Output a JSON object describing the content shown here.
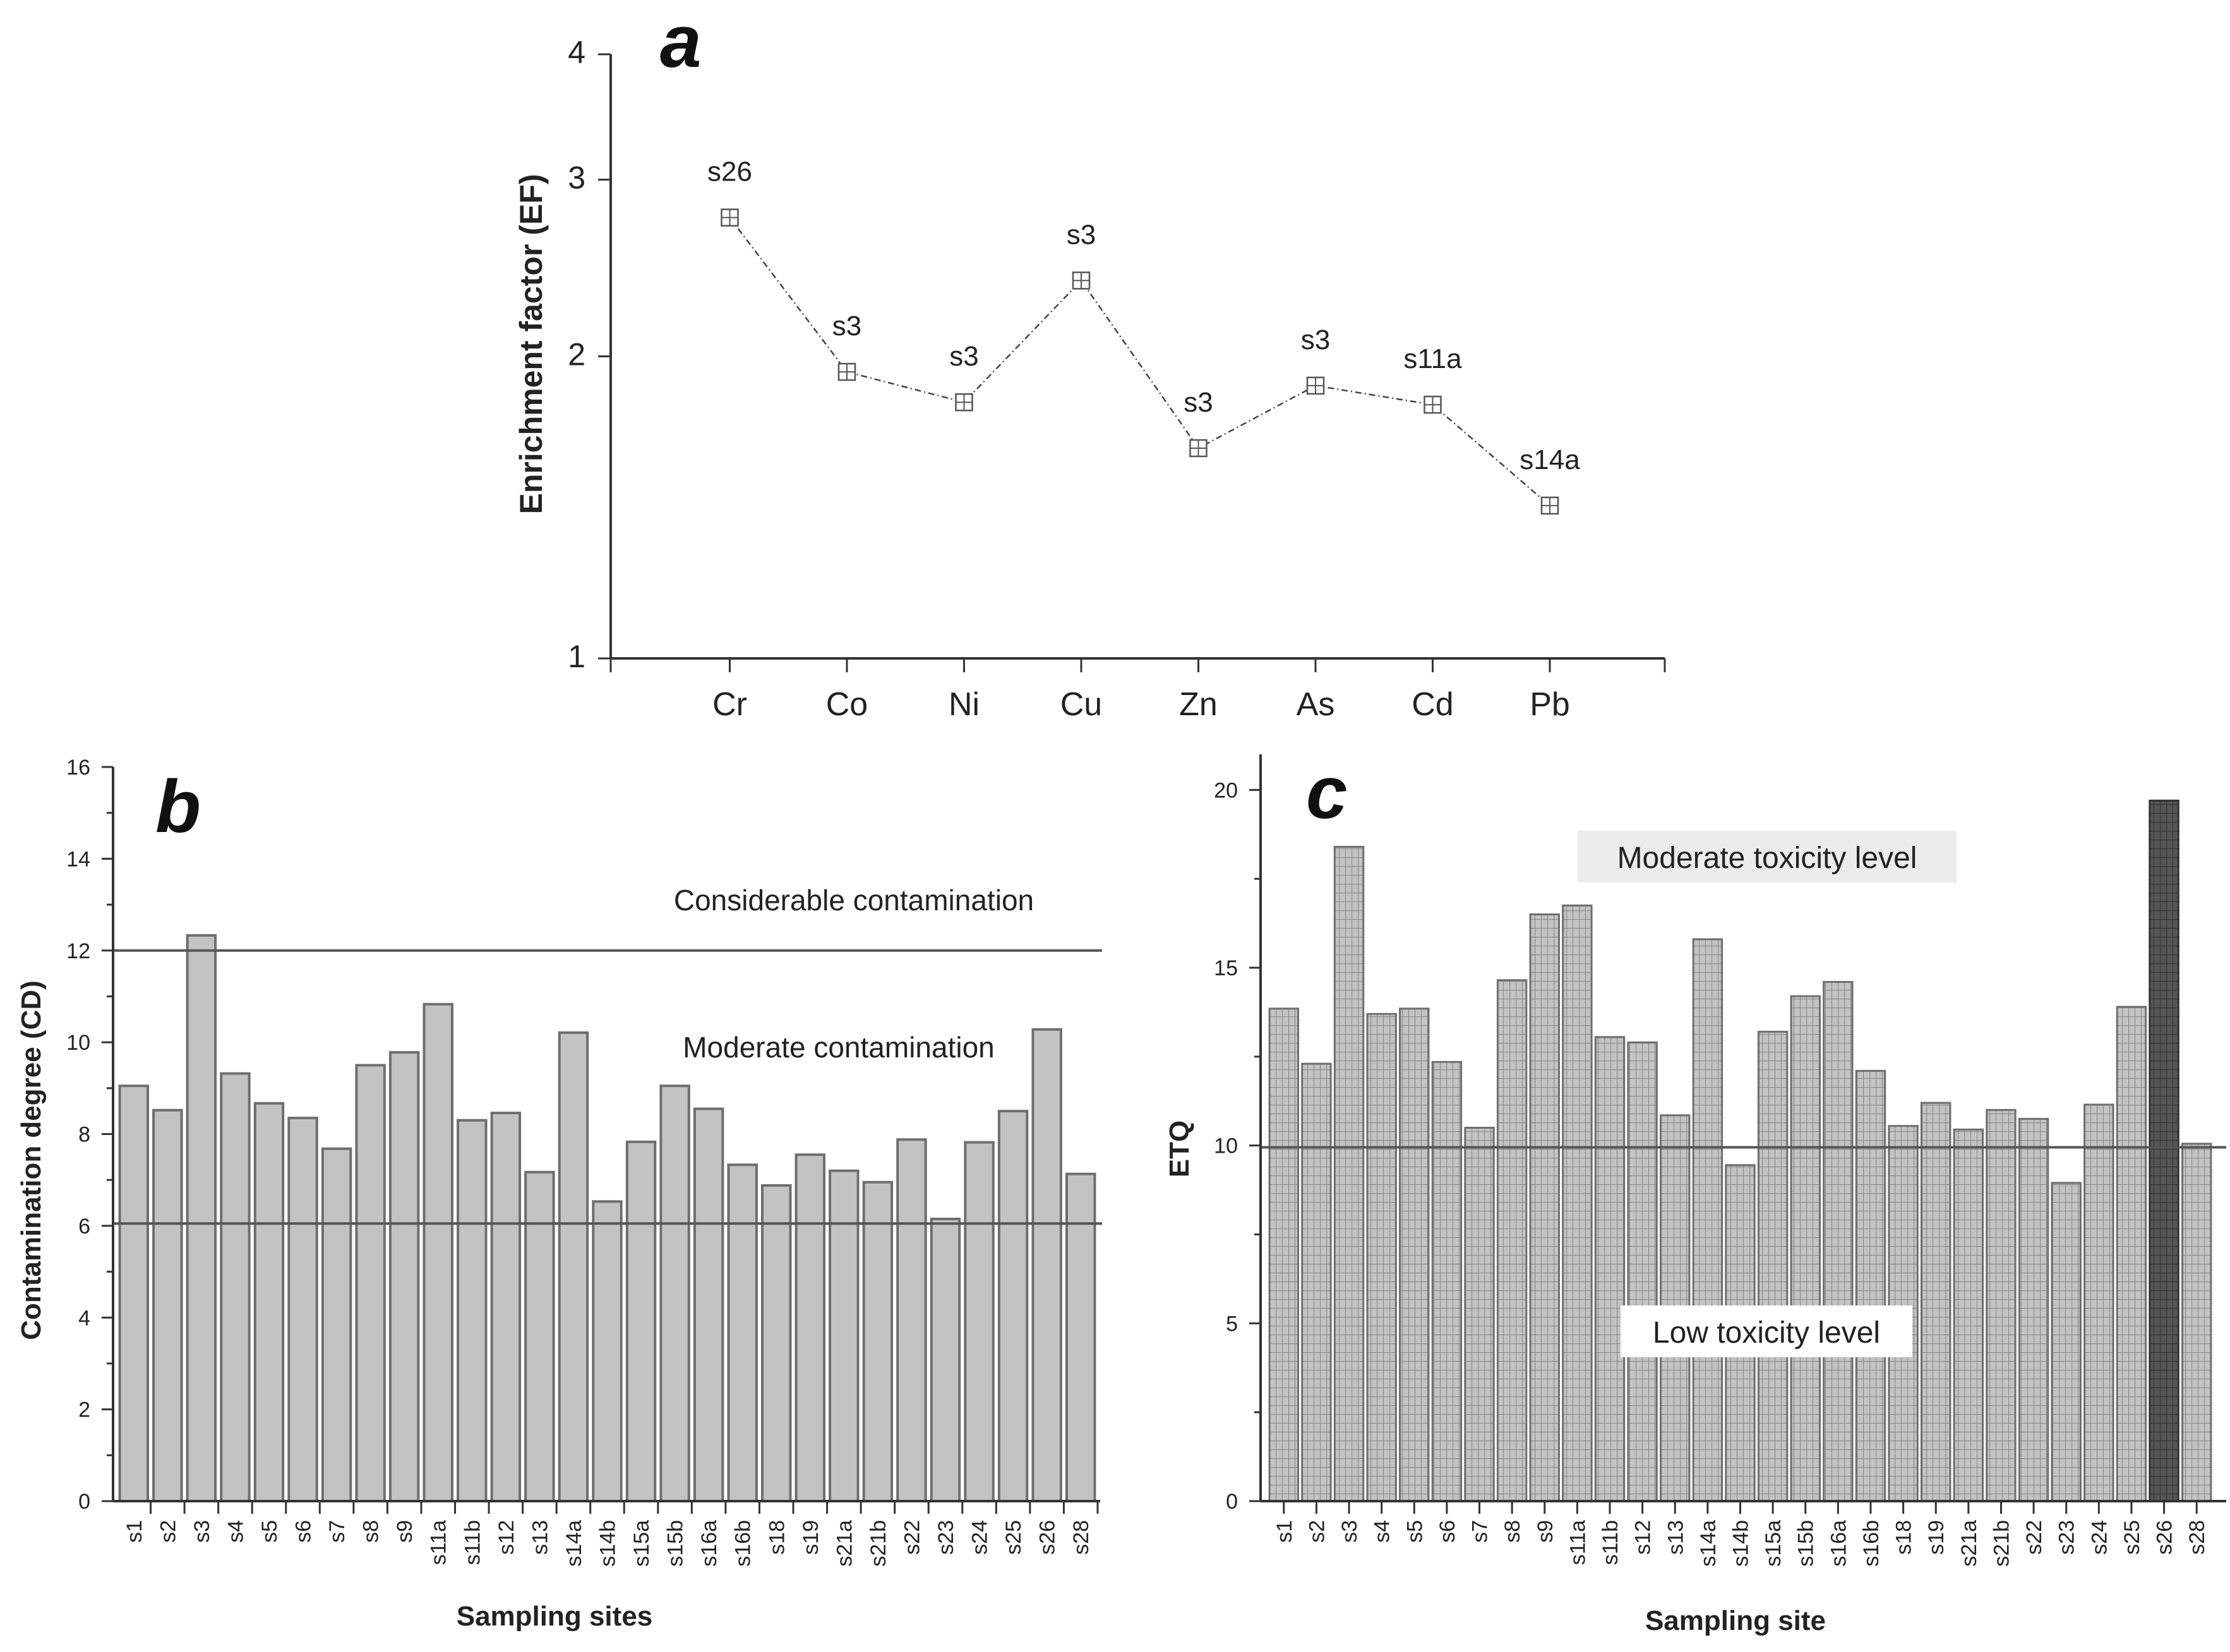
{
  "chart_data": [
    {
      "type": "line",
      "panel": "a",
      "ylabel": "Enrichment factor (EF)",
      "yscale": "log",
      "ylim": [
        1,
        4
      ],
      "yticks": [
        1,
        2,
        3,
        4
      ],
      "categories": [
        "Cr",
        "Co",
        "Ni",
        "Cu",
        "Zn",
        "As",
        "Cd",
        "Pb"
      ],
      "values": [
        2.75,
        1.93,
        1.8,
        2.38,
        1.62,
        1.87,
        1.79,
        1.42
      ],
      "point_labels": [
        "s26",
        "s3",
        "s3",
        "s3",
        "s3",
        "s3",
        "s11a",
        "s14a"
      ]
    },
    {
      "type": "bar",
      "panel": "b",
      "xlabel": "Sampling sites",
      "ylabel": "Contamination degree (CD)",
      "ylim": [
        0,
        16
      ],
      "yticks": [
        0,
        2,
        4,
        6,
        8,
        10,
        12,
        14,
        16
      ],
      "categories": [
        "s1",
        "s2",
        "s3",
        "s4",
        "s5",
        "s6",
        "s7",
        "s8",
        "s9",
        "s11a",
        "s11b",
        "s12",
        "s13",
        "s14a",
        "s14b",
        "s15a",
        "s15b",
        "s16a",
        "s16b",
        "s18",
        "s19",
        "s21a",
        "s21b",
        "s22",
        "s23",
        "s24",
        "s25",
        "s26",
        "s28"
      ],
      "values": [
        9.05,
        8.52,
        12.33,
        9.32,
        8.67,
        8.35,
        7.68,
        9.5,
        9.78,
        10.83,
        8.3,
        8.46,
        7.17,
        10.21,
        6.53,
        7.83,
        9.05,
        8.55,
        7.33,
        6.88,
        7.55,
        7.2,
        6.95,
        7.88,
        6.15,
        7.82,
        8.5,
        10.28,
        7.13
      ],
      "reference_lines": [
        {
          "value": 12,
          "label": "Considerable contamination"
        },
        {
          "value": 6.05,
          "label": "Moderate contamination"
        }
      ]
    },
    {
      "type": "bar",
      "panel": "c",
      "xlabel": "Sampling site",
      "ylabel": "ETQ",
      "ylim": [
        0,
        21
      ],
      "yticks": [
        0,
        5,
        10,
        15,
        20
      ],
      "categories": [
        "s1",
        "s2",
        "s3",
        "s4",
        "s5",
        "s6",
        "s7",
        "s8",
        "s9",
        "s11a",
        "s11b",
        "s12",
        "s13",
        "s14a",
        "s14b",
        "s15a",
        "s15b",
        "s16a",
        "s16b",
        "s18",
        "s19",
        "s21a",
        "s21b",
        "s22",
        "s23",
        "s24",
        "s25",
        "s26",
        "s28"
      ],
      "values": [
        13.85,
        12.3,
        18.4,
        13.7,
        13.85,
        12.35,
        10.5,
        14.65,
        16.5,
        16.75,
        13.05,
        12.9,
        10.85,
        15.8,
        9.45,
        13.2,
        14.2,
        14.6,
        12.1,
        10.55,
        11.2,
        10.45,
        11.0,
        10.75,
        8.95,
        11.15,
        13.9,
        19.7,
        10.05
      ],
      "highlight": "s26",
      "reference_lines": [
        {
          "value": 9.95,
          "label": ""
        }
      ],
      "zone_labels": {
        "upper": "Moderate toxicity level",
        "lower": "Low toxicity level"
      }
    }
  ],
  "colors": {
    "bar_fill": "#c3c3c3",
    "bar_stroke": "#6e6e6e",
    "grid_hatch": "#8a8a8a",
    "highlight_fill": "#555555",
    "reference_line": "#555555",
    "zone_box_fill": "#ececec"
  }
}
